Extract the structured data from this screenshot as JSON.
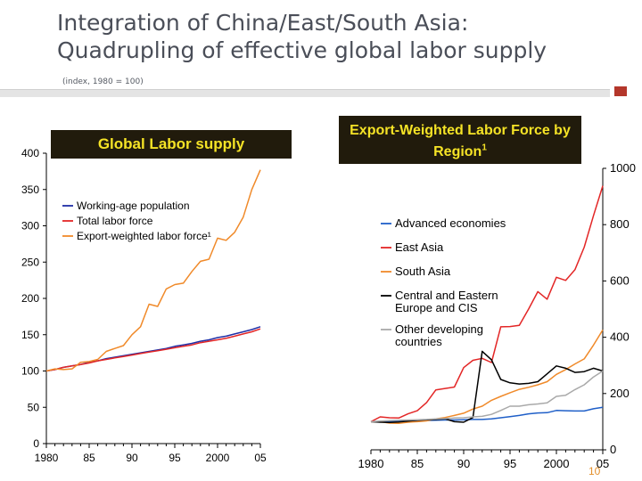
{
  "slide": {
    "title_line1": "Integration of China/East/South Asia:",
    "title_line2": "Quadrupling of effective global labor supply",
    "subtitle": "(index, 1980 = 100)",
    "page_number": "10",
    "accent_color": "#b4372b",
    "box_background": "#211b0c",
    "box_text_color": "#f5e326"
  },
  "chart_data": [
    {
      "type": "line",
      "box_title": "Global Labor supply",
      "xlabel": "",
      "ylabel": "",
      "x_range": [
        1980,
        2005
      ],
      "ylim": [
        0,
        400
      ],
      "x_ticks": [
        1980,
        1985,
        1990,
        1995,
        2000,
        2005
      ],
      "x_tick_labels": [
        "1980",
        "85",
        "90",
        "95",
        "2000",
        "05"
      ],
      "y_ticks": [
        0,
        50,
        100,
        150,
        200,
        250,
        300,
        350,
        400
      ],
      "y_tick_labels": [
        "0",
        "50",
        "100",
        "150",
        "200",
        "250",
        "300",
        "350",
        "400"
      ],
      "y_axis_side": "left",
      "legend_position": "top-left",
      "grid": false,
      "x": [
        1980,
        1981,
        1982,
        1983,
        1984,
        1985,
        1986,
        1987,
        1988,
        1989,
        1990,
        1991,
        1992,
        1993,
        1994,
        1995,
        1996,
        1997,
        1998,
        1999,
        2000,
        2001,
        2002,
        2003,
        2004,
        2005
      ],
      "series": [
        {
          "name": "Working-age population",
          "color": "#1f2ea6",
          "values": [
            100,
            102,
            105,
            107,
            109,
            112,
            114,
            117,
            119,
            121,
            123,
            125,
            127,
            129,
            131,
            134,
            136,
            138,
            141,
            143,
            146,
            148,
            151,
            154,
            157,
            161
          ]
        },
        {
          "name": "Total labor force",
          "color": "#e32626",
          "values": [
            100,
            102,
            105,
            107,
            109,
            111,
            114,
            116,
            118,
            120,
            122,
            124,
            126,
            128,
            130,
            132,
            134,
            136,
            139,
            141,
            143,
            145,
            148,
            151,
            154,
            158
          ]
        },
        {
          "name": "Export-weighted labor force¹",
          "color": "#f08a2a",
          "values": [
            100,
            103,
            102,
            103,
            112,
            113,
            116,
            127,
            131,
            135,
            150,
            161,
            192,
            189,
            213,
            219,
            221,
            237,
            251,
            254,
            283,
            280,
            291,
            312,
            350,
            377
          ]
        }
      ]
    },
    {
      "type": "line",
      "box_title": "Export-Weighted Labor Force by Region¹",
      "xlabel": "",
      "ylabel": "",
      "x_range": [
        1980,
        2005
      ],
      "ylim": [
        0,
        1000
      ],
      "x_ticks": [
        1980,
        1985,
        1990,
        1995,
        2000,
        2005
      ],
      "x_tick_labels": [
        "1980",
        "85",
        "90",
        "95",
        "2000",
        "05"
      ],
      "y_ticks": [
        0,
        200,
        400,
        600,
        800,
        1000
      ],
      "y_tick_labels": [
        "0",
        "200",
        "400",
        "600",
        "800",
        "1000"
      ],
      "y_axis_side": "right",
      "legend_position": "middle-left",
      "grid": false,
      "x": [
        1980,
        1981,
        1982,
        1983,
        1984,
        1985,
        1986,
        1987,
        1988,
        1989,
        1990,
        1991,
        1992,
        1993,
        1994,
        1995,
        1996,
        1997,
        1998,
        1999,
        2000,
        2001,
        2002,
        2003,
        2004,
        2005
      ],
      "series": [
        {
          "name": "Advanced economies",
          "color": "#1f5fc8",
          "values": [
            100,
            101,
            101,
            102,
            103,
            104,
            104,
            105,
            106,
            106,
            107,
            108,
            108,
            110,
            114,
            118,
            122,
            128,
            131,
            132,
            140,
            139,
            138,
            138,
            146,
            151
          ]
        },
        {
          "name": "East Asia",
          "color": "#e32626",
          "values": [
            100,
            117,
            114,
            113,
            128,
            139,
            168,
            213,
            218,
            223,
            292,
            318,
            325,
            310,
            437,
            438,
            442,
            500,
            562,
            535,
            613,
            602,
            640,
            720,
            832,
            938
          ]
        },
        {
          "name": "South Asia",
          "color": "#f08a2a",
          "values": [
            100,
            100,
            95,
            94,
            98,
            100,
            103,
            110,
            115,
            122,
            130,
            145,
            155,
            176,
            190,
            203,
            215,
            222,
            231,
            242,
            268,
            285,
            305,
            323,
            372,
            426
          ]
        },
        {
          "name": "Central and Eastern\nEurope and CIS",
          "color": "#000000",
          "values": [
            100,
            98,
            97,
            99,
            102,
            105,
            107,
            108,
            110,
            100,
            98,
            115,
            350,
            320,
            250,
            238,
            234,
            236,
            242,
            270,
            298,
            290,
            275,
            278,
            290,
            280
          ]
        },
        {
          "name": "Other developing\ncountries",
          "color": "#a9a9a9",
          "values": [
            100,
            102,
            104,
            105,
            106,
            107,
            108,
            110,
            111,
            113,
            114,
            117,
            119,
            126,
            140,
            155,
            155,
            160,
            163,
            167,
            190,
            194,
            214,
            231,
            259,
            280
          ]
        }
      ]
    }
  ]
}
